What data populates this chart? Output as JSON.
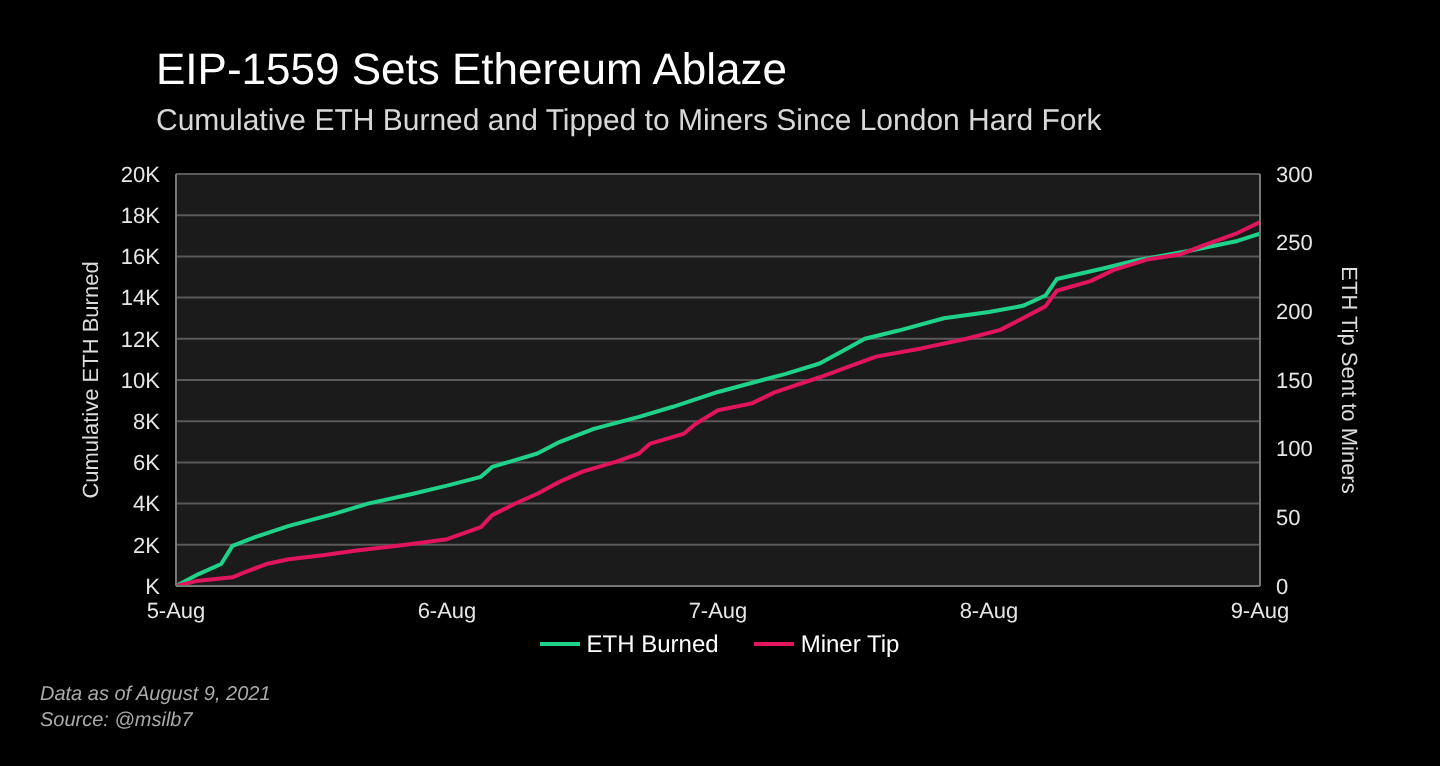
{
  "chart_data": {
    "type": "line",
    "title": "EIP-1559 Sets Ethereum Ablaze",
    "subtitle": "Cumulative ETH Burned and Tipped to Miners Since London Hard Fork",
    "ylabel": "Cumulative ETH Burned",
    "y2label": "ETH Tip Sent to Miners",
    "annotations": [
      "Data as of August 9, 2021",
      "Source: @msilb7"
    ],
    "xlim": [
      "2021-08-05T00:00",
      "2021-08-09T00:00"
    ],
    "xticks": [
      {
        "value": "2021-08-05T00:00",
        "label": "5-Aug"
      },
      {
        "value": "2021-08-06T00:00",
        "label": "6-Aug"
      },
      {
        "value": "2021-08-07T00:00",
        "label": "7-Aug"
      },
      {
        "value": "2021-08-08T00:00",
        "label": "8-Aug"
      },
      {
        "value": "2021-08-09T00:00",
        "label": "9-Aug"
      }
    ],
    "ylim": [
      0,
      20000
    ],
    "yticks": [
      {
        "value": 0,
        "label": "K"
      },
      {
        "value": 2000,
        "label": "2K"
      },
      {
        "value": 4000,
        "label": "4K"
      },
      {
        "value": 6000,
        "label": "6K"
      },
      {
        "value": 8000,
        "label": "8K"
      },
      {
        "value": 10000,
        "label": "10K"
      },
      {
        "value": 12000,
        "label": "12K"
      },
      {
        "value": 14000,
        "label": "14K"
      },
      {
        "value": 16000,
        "label": "16K"
      },
      {
        "value": 18000,
        "label": "18K"
      },
      {
        "value": 20000,
        "label": "20K"
      }
    ],
    "y2lim": [
      0,
      300
    ],
    "y2ticks": [
      0,
      50,
      100,
      150,
      200,
      250,
      300
    ],
    "grid": "y",
    "legend": "bottom",
    "marker": "none",
    "line_style": "solid",
    "series": [
      {
        "name": "ETH Burned",
        "color": "#1fd18a",
        "x": [
          "2021-08-05T00:00",
          "2021-08-05T02:00",
          "2021-08-05T04:00",
          "2021-08-05T05:00",
          "2021-08-05T07:00",
          "2021-08-05T10:00",
          "2021-08-05T14:00",
          "2021-08-05T17:00",
          "2021-08-05T21:00",
          "2021-08-06T00:00",
          "2021-08-06T03:00",
          "2021-08-06T04:00",
          "2021-08-06T08:00",
          "2021-08-06T10:00",
          "2021-08-06T13:00",
          "2021-08-06T17:00",
          "2021-08-06T20:00",
          "2021-08-07T00:00",
          "2021-08-07T06:00",
          "2021-08-07T09:00",
          "2021-08-07T11:00",
          "2021-08-07T13:00",
          "2021-08-07T16:00",
          "2021-08-07T20:00",
          "2021-08-08T00:00",
          "2021-08-08T03:00",
          "2021-08-08T05:00",
          "2021-08-08T06:00",
          "2021-08-08T10:00",
          "2021-08-08T13:00",
          "2021-08-08T18:00",
          "2021-08-08T22:00",
          "2021-08-09T00:00"
        ],
        "values": [
          0,
          580,
          1070,
          1950,
          2370,
          2920,
          3500,
          4000,
          4480,
          4870,
          5300,
          5780,
          6430,
          7000,
          7630,
          8210,
          8700,
          9420,
          10300,
          10800,
          11400,
          12000,
          12400,
          13000,
          13300,
          13600,
          14100,
          14900,
          15400,
          15800,
          16300,
          16750,
          17100
        ]
      },
      {
        "name": "Miner Tip",
        "color": "#e0155e",
        "axis": "y2",
        "x": [
          "2021-08-05T00:00",
          "2021-08-05T02:00",
          "2021-08-05T05:00",
          "2021-08-05T06:00",
          "2021-08-05T08:00",
          "2021-08-05T10:00",
          "2021-08-05T13:00",
          "2021-08-05T16:00",
          "2021-08-05T20:00",
          "2021-08-06T00:00",
          "2021-08-06T03:00",
          "2021-08-06T04:00",
          "2021-08-06T06:00",
          "2021-08-06T08:00",
          "2021-08-06T10:00",
          "2021-08-06T12:00",
          "2021-08-06T15:00",
          "2021-08-06T17:00",
          "2021-08-06T18:00",
          "2021-08-06T21:00",
          "2021-08-06T22:00",
          "2021-08-07T00:00",
          "2021-08-07T03:00",
          "2021-08-07T05:00",
          "2021-08-07T09:00",
          "2021-08-07T12:00",
          "2021-08-07T14:00",
          "2021-08-07T18:00",
          "2021-08-07T22:00",
          "2021-08-08T01:00",
          "2021-08-08T03:00",
          "2021-08-08T05:00",
          "2021-08-08T06:00",
          "2021-08-08T09:00",
          "2021-08-08T11:00",
          "2021-08-08T14:00",
          "2021-08-08T17:00",
          "2021-08-08T19:00",
          "2021-08-08T22:00",
          "2021-08-09T00:00"
        ],
        "values": [
          0,
          3.9,
          6.3,
          9.7,
          16,
          19.5,
          22.4,
          25.8,
          29.7,
          34.1,
          42.9,
          51.6,
          59.9,
          67.2,
          76,
          83.3,
          90.6,
          96.4,
          103.7,
          111,
          118,
          128,
          133,
          141,
          152,
          161,
          167,
          173,
          180,
          186.5,
          195,
          203.6,
          215,
          222,
          230,
          237.7,
          241.6,
          248,
          257,
          265
        ]
      }
    ]
  }
}
